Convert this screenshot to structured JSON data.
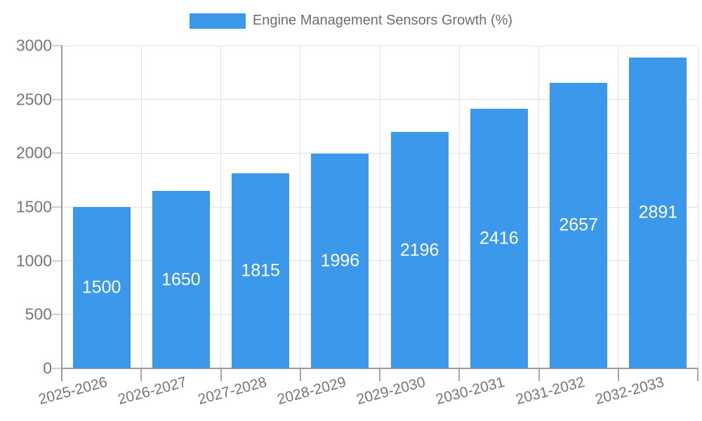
{
  "legend": {
    "swatch_color": "#3b98eb"
  },
  "chart_data": {
    "type": "bar",
    "title": "Engine Management Sensors Growth (%)",
    "xlabel": "",
    "ylabel": "",
    "categories": [
      "2025-2026",
      "2026-2027",
      "2027-2028",
      "2028-2029",
      "2029-2030",
      "2030-2031",
      "2031-2032",
      "2032-2033"
    ],
    "values": [
      1500,
      1650,
      1815,
      1996,
      2196,
      2416,
      2657,
      2891
    ],
    "value_labels": [
      "1500",
      "1650",
      "1815",
      "1996",
      "2196",
      "2416",
      "2657",
      "2891"
    ],
    "ylim": [
      0,
      3000
    ],
    "yticks": [
      0,
      500,
      1000,
      1500,
      2000,
      2500,
      3000
    ],
    "bar_color": "#3b98eb",
    "value_label_color": "#ffffff",
    "grid": true,
    "legend_position": "top"
  }
}
